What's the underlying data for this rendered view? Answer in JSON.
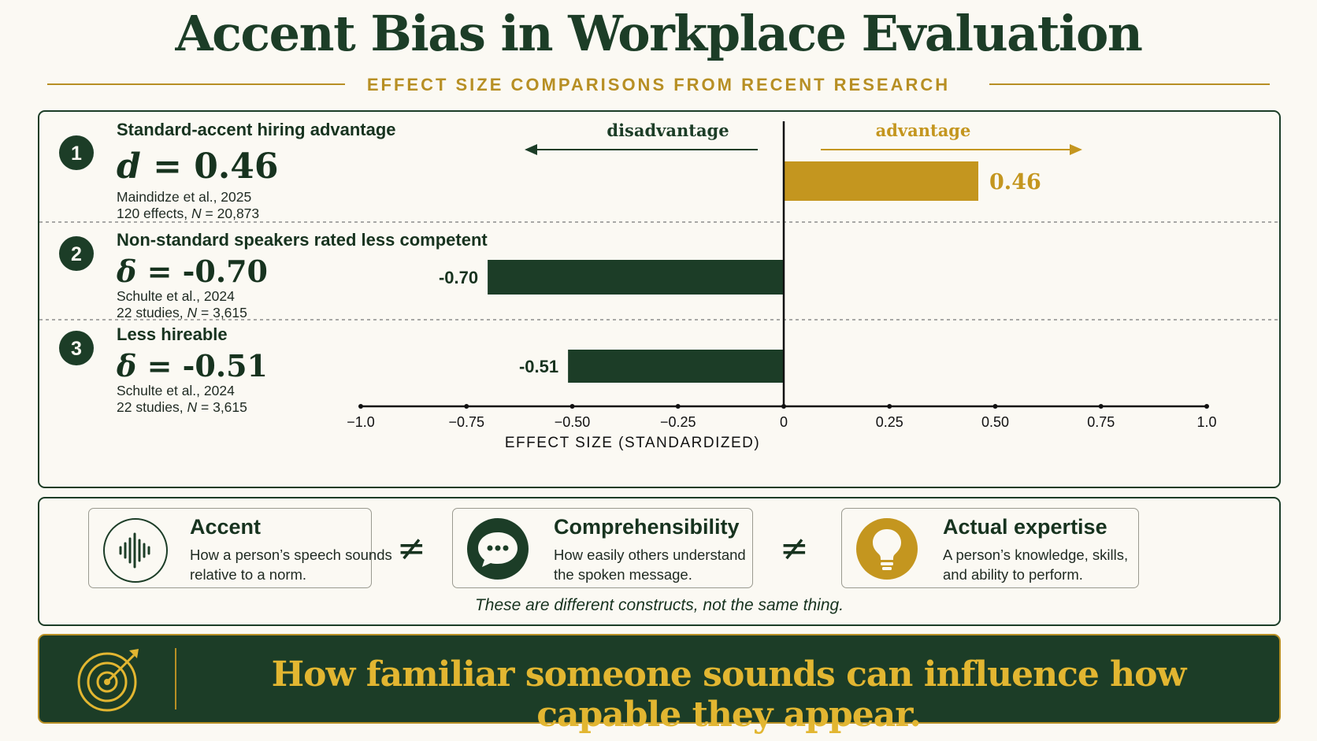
{
  "title": "Accent Bias in Workplace Evaluation",
  "subtitle": "EFFECT SIZE COMPARISONS FROM RECENT RESEARCH",
  "colors": {
    "green": "#1c3d27",
    "gold": "#c4961f",
    "cream": "#fbf9f3"
  },
  "chart_data": {
    "type": "bar",
    "orientation": "horizontal",
    "xlabel": "EFFECT SIZE (STANDARDIZED)",
    "xlim": [
      -1.0,
      1.0
    ],
    "xticks": [
      "−1.0",
      "−0.75",
      "−0.50",
      "−0.25",
      "0",
      "0.25",
      "0.50",
      "0.75",
      "1.0"
    ],
    "direction_labels": {
      "left": "disadvantage",
      "right": "advantage"
    },
    "rows": [
      {
        "number": "1",
        "title": "Standard-accent hiring advantage",
        "stat_symbol": "d",
        "stat_value": "= 0.46",
        "source": "Maindidze et al., 2025",
        "sample_pre": "120 effects, ",
        "sample_n": "N",
        "sample_post": " = 20,873",
        "value": 0.46,
        "label": "0.46",
        "color": "gold"
      },
      {
        "number": "2",
        "title": "Non-standard speakers rated less competent",
        "stat_symbol": "δ",
        "stat_value": " = -0.70",
        "source": "Schulte et al., 2024",
        "sample_pre": "22 studies, ",
        "sample_n": "N",
        "sample_post": " = 3,615",
        "value": -0.7,
        "label": "-0.70",
        "color": "green"
      },
      {
        "number": "3",
        "title": "Less hireable",
        "stat_symbol": "δ",
        "stat_value": " = -0.51",
        "source": "Schulte et al., 2024",
        "sample_pre": "22 studies, ",
        "sample_n": "N",
        "sample_post": " = 3,615",
        "value": -0.51,
        "label": "-0.51",
        "color": "green"
      }
    ]
  },
  "constructs": [
    {
      "title": "Accent",
      "desc": "How a person’s speech sounds relative to a norm.",
      "icon": "soundwave-icon"
    },
    {
      "title": "Comprehensibility",
      "desc": "How easily others understand the spoken message.",
      "icon": "speech-bubble-icon"
    },
    {
      "title": "Actual expertise",
      "desc": "A person’s knowledge, skills, and ability to perform.",
      "icon": "lightbulb-icon"
    }
  ],
  "not_equal": "≠",
  "constructs_note": "These are different constructs, not the same thing.",
  "banner": {
    "text": "How familiar someone sounds can influence how capable they appear.",
    "icon": "target-icon"
  }
}
